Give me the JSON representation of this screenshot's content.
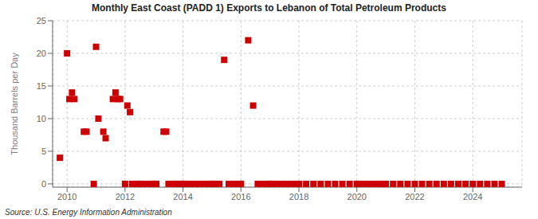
{
  "chart_data": {
    "type": "scatter",
    "title": "Monthly East Coast (PADD 1) Exports to Lebanon of Total Petroleum Products",
    "ylabel": "Thousand Barrels per Day",
    "annotations": [
      "Source: U.S. Energy Information Administration"
    ],
    "color": "#cc0000",
    "marker": "square",
    "grid": true,
    "xlim": [
      2009.5,
      2025.7
    ],
    "ylim": [
      -0.5,
      25
    ],
    "xticks": [
      2010,
      2012,
      2014,
      2016,
      2018,
      2020,
      2022,
      2024
    ],
    "yticks": [
      0,
      5,
      10,
      15,
      20,
      25
    ],
    "x": [
      2009.75,
      2010.0,
      2010.08,
      2010.17,
      2010.25,
      2010.58,
      2010.67,
      2010.92,
      2011.0,
      2011.08,
      2011.25,
      2011.33,
      2011.58,
      2011.67,
      2011.75,
      2011.83,
      2012.0,
      2012.08,
      2012.17,
      2012.25,
      2012.42,
      2012.5,
      2012.58,
      2012.75,
      2012.92,
      2013.0,
      2013.08,
      2013.33,
      2013.42,
      2013.5,
      2013.67,
      2013.75,
      2013.92,
      2014.0,
      2014.08,
      2014.25,
      2014.42,
      2014.58,
      2014.75,
      2014.92,
      2015.0,
      2015.08,
      2015.25,
      2015.42,
      2015.58,
      2015.75,
      2015.92,
      2016.0,
      2016.25,
      2016.42,
      2016.58,
      2016.75,
      2016.92,
      2017.0,
      2017.08,
      2017.25,
      2017.42,
      2017.58,
      2017.75,
      2017.92,
      2018.0,
      2018.25,
      2018.5,
      2018.75,
      2019.0,
      2019.25,
      2019.5,
      2019.75,
      2020.0,
      2020.08,
      2020.25,
      2020.42,
      2020.58,
      2020.75,
      2020.92,
      2021.0,
      2021.25,
      2021.5,
      2021.75,
      2022.0,
      2022.25,
      2022.5,
      2022.75,
      2023.0,
      2023.25,
      2023.5,
      2023.75,
      2024.0,
      2024.25,
      2024.5,
      2024.75,
      2025.0
    ],
    "values": [
      4.0,
      20.0,
      13.0,
      14.0,
      13.0,
      8.0,
      8.0,
      0.0,
      21.0,
      10.0,
      8.0,
      7.0,
      13.0,
      14.0,
      13.0,
      13.0,
      0.0,
      12.0,
      11.0,
      0.0,
      0.0,
      0.0,
      0.0,
      0.0,
      0.0,
      0.0,
      0.0,
      8.0,
      8.0,
      0.0,
      0.0,
      0.0,
      0.0,
      0.0,
      0.0,
      0.0,
      0.0,
      0.0,
      0.0,
      0.0,
      0.0,
      0.0,
      0.0,
      19.0,
      0.0,
      0.0,
      0.0,
      0.0,
      22.0,
      12.0,
      0.0,
      0.0,
      0.0,
      0.0,
      0.0,
      0.0,
      0.0,
      0.0,
      0.0,
      0.0,
      0.0,
      0.0,
      0.0,
      0.0,
      0.0,
      0.0,
      0.0,
      0.0,
      0.0,
      0.0,
      0.0,
      0.0,
      0.0,
      0.0,
      0.0,
      0.0,
      0.0,
      0.0,
      0.0,
      0.0,
      0.0,
      0.0,
      0.0,
      0.0,
      0.0,
      0.0,
      0.0,
      0.0,
      0.0,
      0.0,
      0.0,
      0.0
    ]
  }
}
